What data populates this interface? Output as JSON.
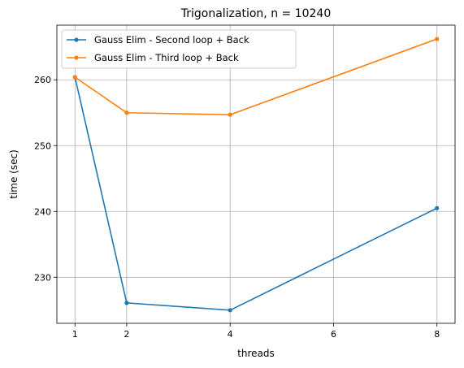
{
  "chart_data": {
    "type": "line",
    "title": "Trigonalization, n = 10240",
    "xlabel": "threads",
    "ylabel": "time (sec)",
    "x": [
      1,
      2,
      4,
      8
    ],
    "xlim": [
      0.65,
      8.35
    ],
    "ylim": [
      223.0,
      268.3
    ],
    "xticks": [
      1,
      2,
      4,
      6,
      8
    ],
    "yticks": [
      230,
      240,
      250,
      260
    ],
    "grid": true,
    "legend_position": "top-left",
    "series": [
      {
        "name": "Gauss Elim - Second loop + Back",
        "color": "#1f77b4",
        "values": [
          260.4,
          226.1,
          225.0,
          240.5
        ]
      },
      {
        "name": "Gauss Elim - Third loop + Back",
        "color": "#ff7f0e",
        "values": [
          260.4,
          255.0,
          254.7,
          266.2
        ]
      }
    ]
  }
}
